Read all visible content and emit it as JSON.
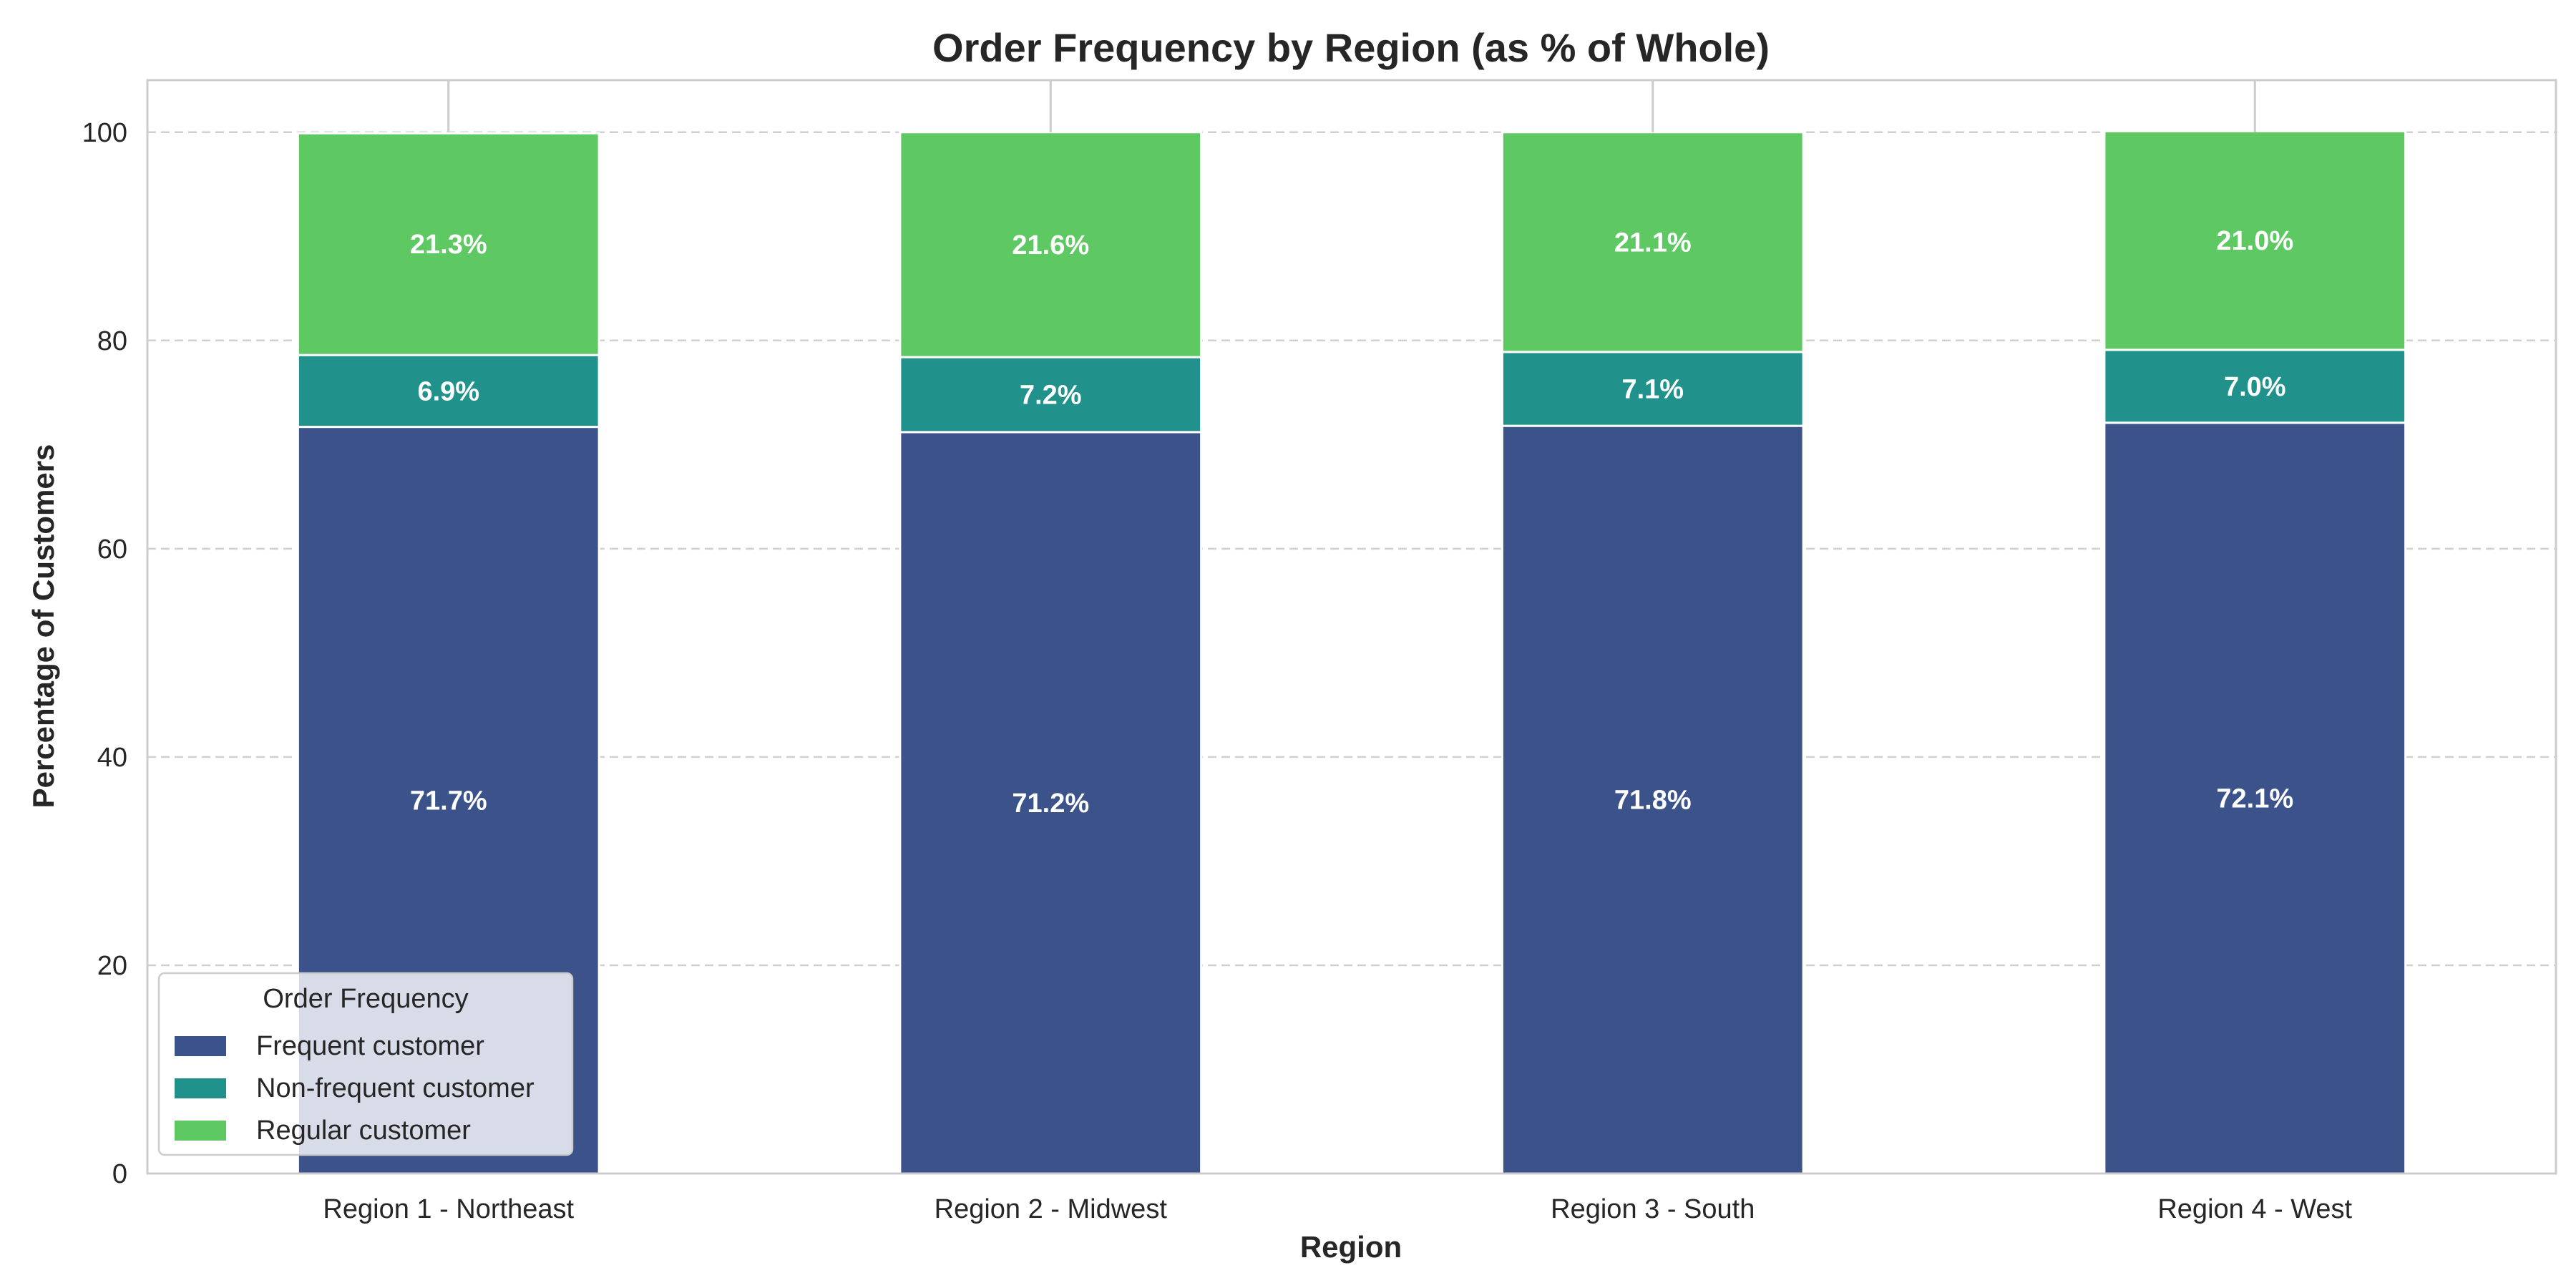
{
  "chart_data": {
    "type": "bar",
    "stacked": true,
    "title": "Order Frequency by Region (as % of Whole)",
    "xlabel": "Region",
    "ylabel": "Percentage of Customers",
    "categories": [
      "Region 1 - Northeast",
      "Region 2 - Midwest",
      "Region 3 - South",
      "Region 4 - West"
    ],
    "series": [
      {
        "name": "Frequent customer",
        "values": [
          71.7,
          71.2,
          71.8,
          72.1
        ],
        "labels": [
          "71.7%",
          "71.2%",
          "71.8%",
          "72.1%"
        ],
        "color": "#3b528b"
      },
      {
        "name": "Non-frequent customer",
        "values": [
          6.9,
          7.2,
          7.1,
          7.0
        ],
        "labels": [
          "6.9%",
          "7.2%",
          "7.1%",
          "7.0%"
        ],
        "color": "#21918c"
      },
      {
        "name": "Regular customer",
        "values": [
          21.3,
          21.6,
          21.1,
          21.0
        ],
        "labels": [
          "21.3%",
          "21.6%",
          "21.1%",
          "21.0%"
        ],
        "color": "#5ec962"
      }
    ],
    "ylim": [
      0,
      105
    ],
    "yticks": [
      0,
      20,
      40,
      60,
      80,
      100
    ],
    "grid": true,
    "legend": {
      "title": "Order Frequency",
      "placement": "lower-left"
    }
  }
}
